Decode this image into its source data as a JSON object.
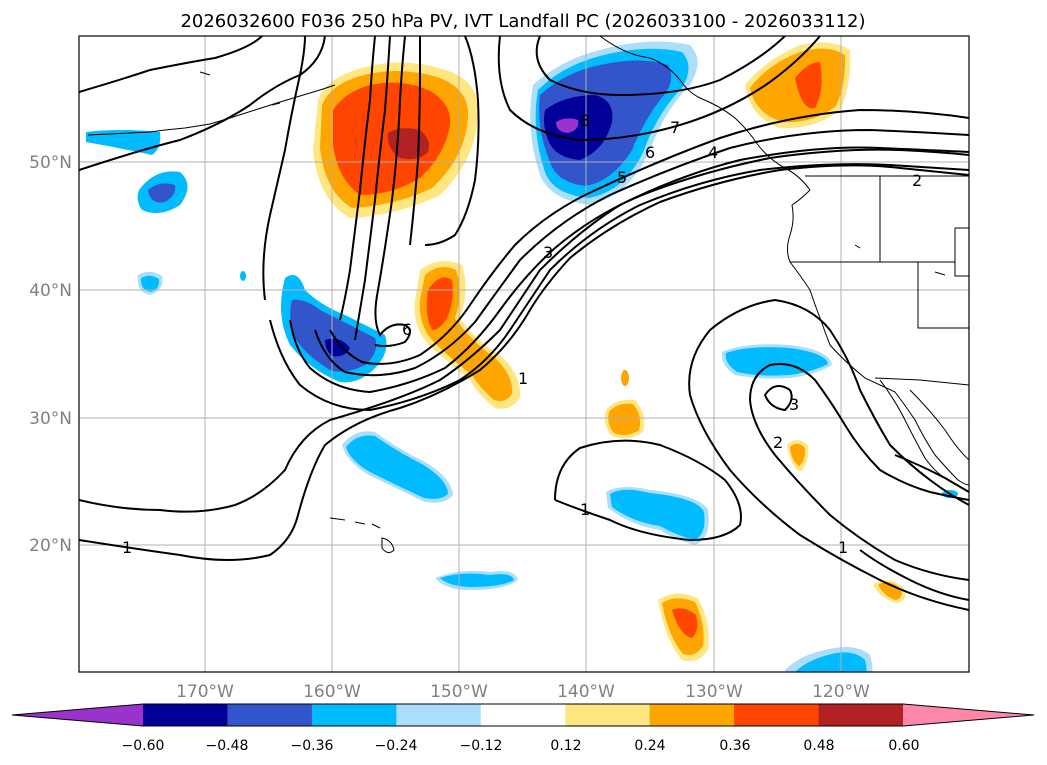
{
  "title": "2026032600 F036 250 hPa PV, IVT Landfall PC (2026033100 - 2026033112)",
  "lat_labels": [
    "50°N",
    "40°N",
    "30°N",
    "20°N"
  ],
  "lon_labels": [
    "170°W",
    "160°W",
    "150°W",
    "140°W",
    "130°W",
    "120°W"
  ],
  "colorbar": {
    "ticks": [
      "−0.60",
      "−0.48",
      "−0.36",
      "−0.24",
      "−0.12",
      "0.12",
      "0.24",
      "0.36",
      "0.48",
      "0.60"
    ],
    "colors": [
      "#9933cc",
      "#000099",
      "#3355cc",
      "#00bbff",
      "#aadefa",
      "#ffffff",
      "#ffe680",
      "#ffa500",
      "#ff4500",
      "#b22222",
      "#ff88aa"
    ]
  },
  "contour_labels": [
    "1",
    "1",
    "1",
    "1",
    "2",
    "2",
    "3",
    "3",
    "4",
    "5",
    "6",
    "6",
    "7",
    "8"
  ],
  "colors": {
    "neg_dark": "#000099",
    "neg_mid": "#3355cc",
    "neg": "#00bbff",
    "neg_light": "#aadefa",
    "neg_min": "#9933cc",
    "pos_light": "#ffe680",
    "pos": "#ffa500",
    "pos_mid": "#ff4500",
    "pos_dark": "#b22222"
  }
}
